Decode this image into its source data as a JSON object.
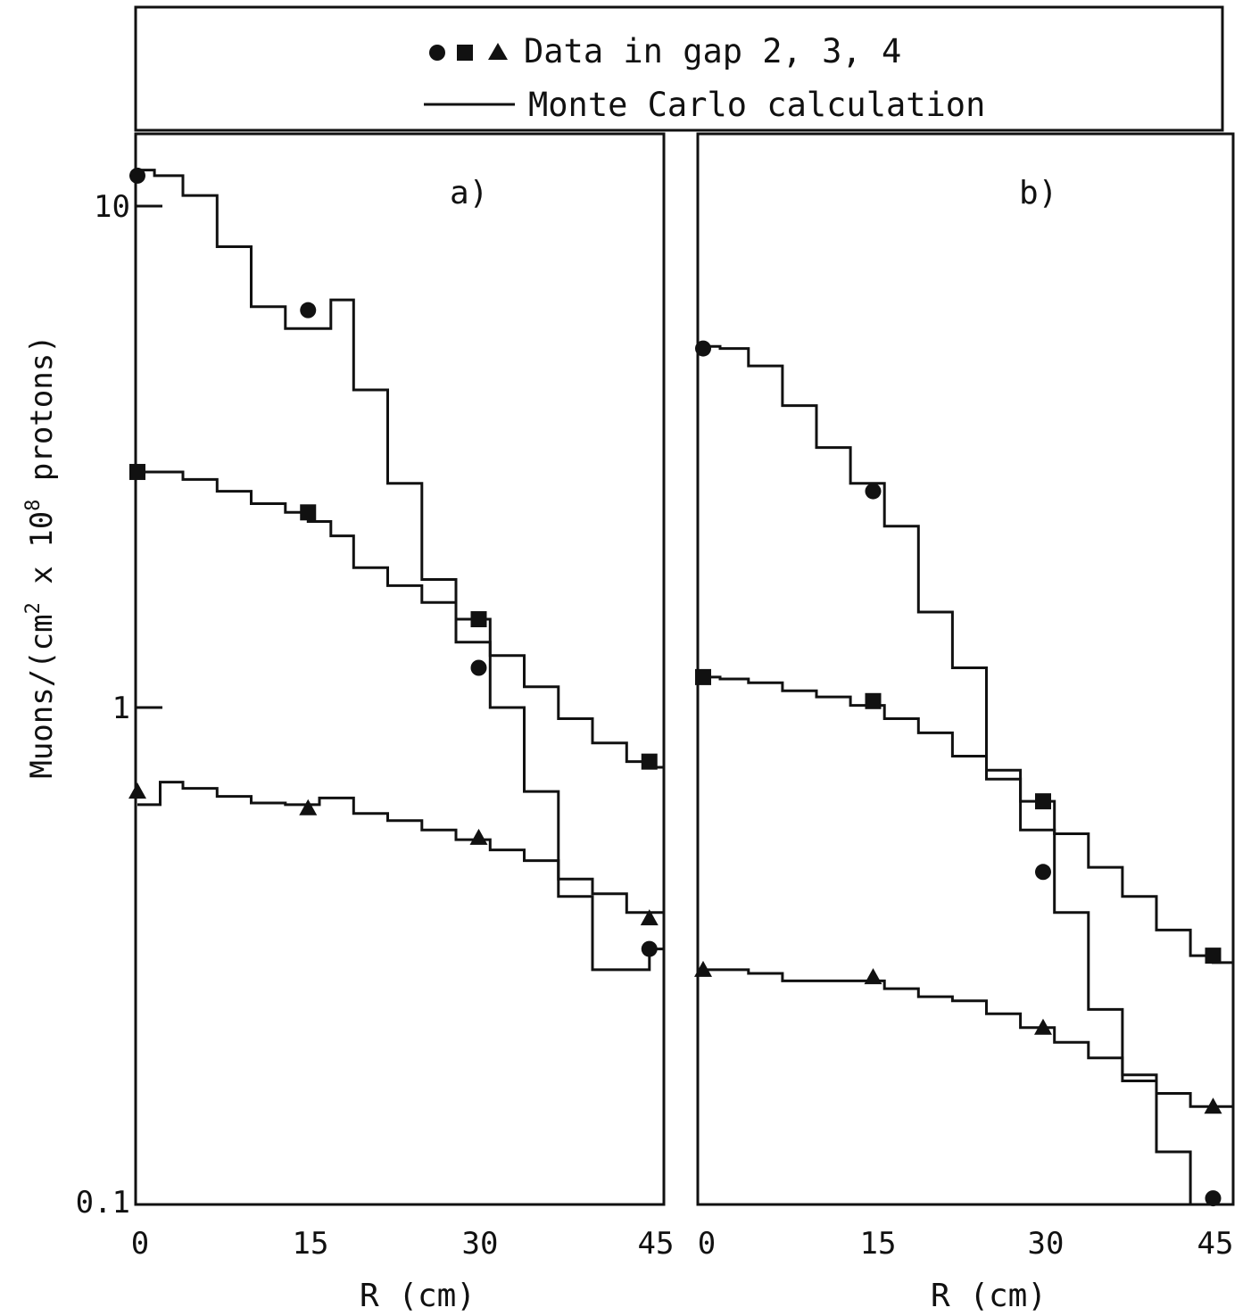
{
  "legend": {
    "data_label": "Data in gap 2, 3, 4",
    "mc_label": "Monte Carlo calculation",
    "markers": [
      "circle",
      "square",
      "triangle"
    ]
  },
  "ylabel": "Muons/(cm² x 10⁸ protons)",
  "ylabel_parts": {
    "main": "Muons/(cm",
    "sup2": "2",
    "mid": " x 10",
    "sup8": "8",
    "tail": " protons)"
  },
  "colors": {
    "ink": "#111111",
    "background": "#ffffff"
  },
  "chart_data": [
    {
      "type": "scatter",
      "panel_label": "a)",
      "xlabel": "R (cm)",
      "xlim": [
        0,
        47
      ],
      "ylim": [
        0.1,
        15
      ],
      "yscale": "log",
      "x_ticks": [
        "0",
        "15",
        "30",
        "45"
      ],
      "y_ticks": [
        "10",
        "1",
        "0.1"
      ],
      "series": [
        {
          "marker": "circle",
          "x": [
            0,
            15,
            30,
            45
          ],
          "y": [
            11.5,
            6.2,
            1.2,
            0.33
          ]
        },
        {
          "marker": "square",
          "x": [
            0,
            15,
            30,
            45
          ],
          "y": [
            2.95,
            2.45,
            1.5,
            0.78
          ]
        },
        {
          "marker": "triangle",
          "x": [
            0,
            15,
            30,
            45
          ],
          "y": [
            0.68,
            0.63,
            0.55,
            0.38
          ]
        }
      ],
      "mc_histograms": [
        {
          "edges": [
            0,
            1.5,
            4,
            7,
            10,
            13,
            15,
            17,
            19,
            22,
            25,
            28,
            31,
            34,
            37,
            40,
            43,
            45,
            47
          ],
          "values": [
            11.8,
            11.5,
            10.5,
            8.3,
            6.3,
            5.7,
            5.7,
            6.5,
            4.3,
            2.8,
            1.8,
            1.35,
            1.0,
            0.68,
            0.42,
            0.3,
            0.3,
            0.33
          ]
        },
        {
          "edges": [
            0,
            1.5,
            4,
            7,
            10,
            13,
            15,
            17,
            19,
            22,
            25,
            28,
            31,
            34,
            37,
            40,
            43,
            45,
            47
          ],
          "values": [
            2.95,
            2.95,
            2.85,
            2.7,
            2.55,
            2.45,
            2.35,
            2.2,
            1.9,
            1.75,
            1.62,
            1.5,
            1.27,
            1.1,
            0.95,
            0.85,
            0.78,
            0.76
          ]
        },
        {
          "edges": [
            0,
            0.5,
            2,
            4,
            7,
            10,
            13,
            16,
            19,
            22,
            25,
            28,
            31,
            34,
            37,
            40,
            43,
            45,
            47
          ],
          "values": [
            0.64,
            0.64,
            0.71,
            0.69,
            0.665,
            0.645,
            0.64,
            0.66,
            0.615,
            0.595,
            0.57,
            0.545,
            0.52,
            0.495,
            0.455,
            0.425,
            0.39,
            0.39
          ]
        }
      ]
    },
    {
      "type": "scatter",
      "panel_label": "b)",
      "xlabel": "R (cm)",
      "xlim": [
        0,
        47
      ],
      "ylim": [
        0.1,
        15
      ],
      "yscale": "log",
      "x_ticks": [
        "0",
        "15",
        "30",
        "45"
      ],
      "series": [
        {
          "marker": "circle",
          "x": [
            0,
            15,
            30,
            45
          ],
          "y": [
            5.2,
            2.7,
            0.47,
            0.105
          ]
        },
        {
          "marker": "square",
          "x": [
            0,
            15,
            30,
            45
          ],
          "y": [
            1.15,
            1.03,
            0.65,
            0.32
          ]
        },
        {
          "marker": "triangle",
          "x": [
            0,
            15,
            30,
            45
          ],
          "y": [
            0.3,
            0.29,
            0.23,
            0.16
          ]
        }
      ],
      "mc_histograms": [
        {
          "edges": [
            0,
            1.5,
            4,
            7,
            10,
            13,
            16,
            19,
            22,
            25,
            28,
            31,
            34,
            37,
            40,
            43,
            45,
            47
          ],
          "values": [
            5.25,
            5.2,
            4.8,
            4.0,
            3.3,
            2.8,
            2.3,
            1.55,
            1.2,
            0.75,
            0.57,
            0.39,
            0.25,
            0.18,
            0.13,
            0.085,
            0.085
          ]
        },
        {
          "edges": [
            0,
            1.5,
            4,
            7,
            10,
            13,
            16,
            19,
            22,
            25,
            28,
            31,
            34,
            37,
            40,
            43,
            45,
            47
          ],
          "values": [
            1.15,
            1.14,
            1.12,
            1.08,
            1.05,
            1.01,
            0.95,
            0.89,
            0.8,
            0.72,
            0.65,
            0.56,
            0.48,
            0.42,
            0.36,
            0.32,
            0.31
          ]
        },
        {
          "edges": [
            0,
            1.5,
            4,
            7,
            10,
            13,
            16,
            19,
            22,
            25,
            28,
            31,
            34,
            37,
            40,
            43,
            45,
            47
          ],
          "values": [
            0.3,
            0.3,
            0.295,
            0.285,
            0.285,
            0.285,
            0.275,
            0.265,
            0.26,
            0.245,
            0.23,
            0.215,
            0.2,
            0.185,
            0.17,
            0.16,
            0.16
          ]
        }
      ]
    }
  ]
}
